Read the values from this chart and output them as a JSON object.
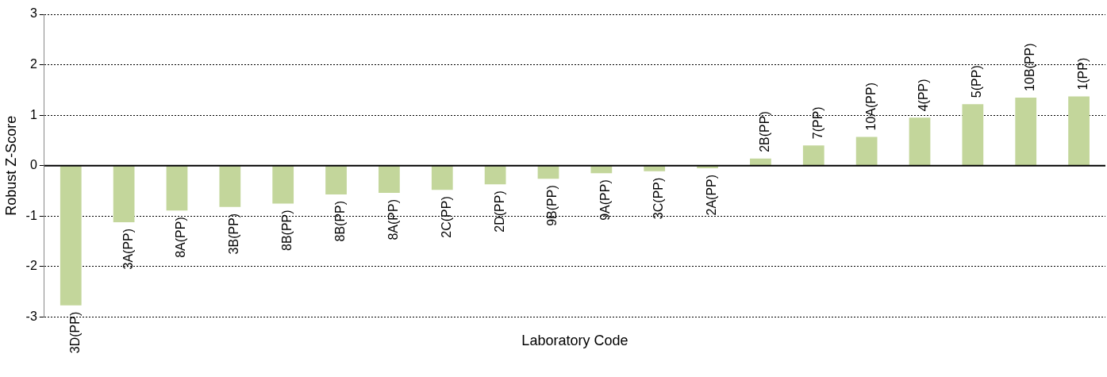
{
  "chart_data": {
    "type": "bar",
    "xlabel": "Laboratory Code",
    "ylabel": "Robust Z-Score",
    "categories": [
      "3D(PP)",
      "3A(PP)",
      "8A(PP)",
      "3B(PP)",
      "8B(PP)",
      "8B(PP)",
      "8A(PP)",
      "2C(PP)",
      "2D(PP)",
      "9B(PP)",
      "9A(PP)",
      "3C(PP)",
      "2A(PP)",
      "2B(PP)",
      "7(PP)",
      "10A(PP)",
      "4(PP)",
      "5(PP)",
      "10B(PP)",
      "1(PP)"
    ],
    "values": [
      -2.77,
      -1.12,
      -0.89,
      -0.82,
      -0.75,
      -0.57,
      -0.54,
      -0.48,
      -0.37,
      -0.26,
      -0.15,
      -0.11,
      -0.05,
      0.14,
      0.4,
      0.57,
      0.95,
      1.22,
      1.35,
      1.37
    ],
    "color": "#c3d69b",
    "ylim": [
      -3,
      3
    ],
    "yticks": [
      -3,
      -2,
      -1,
      0,
      1,
      2,
      3
    ],
    "grid": "y",
    "legend": false
  }
}
